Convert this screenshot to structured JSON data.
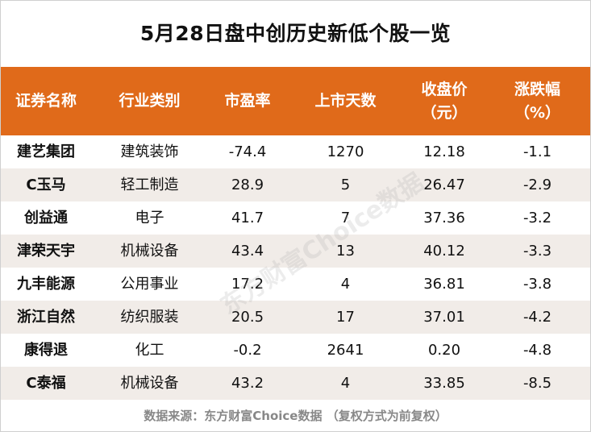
{
  "title": "5月28日盘中创历史新低个股一览",
  "headers": [
    {
      "line1": "证券名称",
      "line2": ""
    },
    {
      "line1": "行业类别",
      "line2": ""
    },
    {
      "line1": "市盈率",
      "line2": ""
    },
    {
      "line1": "上市天数",
      "line2": ""
    },
    {
      "line1": "收盘价",
      "line2": "（元）"
    },
    {
      "line1": "涨跌幅",
      "line2": "（%）"
    }
  ],
  "rows": [
    {
      "name": "建艺集团",
      "industry": "建筑装饰",
      "pe": "-74.4",
      "days": "1270",
      "price": "12.18",
      "change": "-1.1"
    },
    {
      "name": "C玉马",
      "industry": "轻工制造",
      "pe": "28.9",
      "days": "5",
      "price": "26.47",
      "change": "-2.9"
    },
    {
      "name": "创益通",
      "industry": "电子",
      "pe": "41.7",
      "days": "7",
      "price": "37.36",
      "change": "-3.2"
    },
    {
      "name": "津荣天宇",
      "industry": "机械设备",
      "pe": "43.4",
      "days": "13",
      "price": "40.12",
      "change": "-3.3"
    },
    {
      "name": "九丰能源",
      "industry": "公用事业",
      "pe": "17.2",
      "days": "4",
      "price": "36.81",
      "change": "-3.8"
    },
    {
      "name": "浙江自然",
      "industry": "纺织服装",
      "pe": "20.5",
      "days": "17",
      "price": "37.01",
      "change": "-4.2"
    },
    {
      "name": "康得退",
      "industry": "化工",
      "pe": "-0.2",
      "days": "2641",
      "price": "0.20",
      "change": "-4.8"
    },
    {
      "name": "C泰福",
      "industry": "机械设备",
      "pe": "43.2",
      "days": "4",
      "price": "33.85",
      "change": "-8.5"
    }
  ],
  "footer": "数据来源：东方财富Choice数据 （复权方式为前复权）",
  "watermark": "东方财富Choice数据",
  "colors": {
    "header_bg": "#e06a1a",
    "alt_row_bg": "#f1ece8"
  }
}
